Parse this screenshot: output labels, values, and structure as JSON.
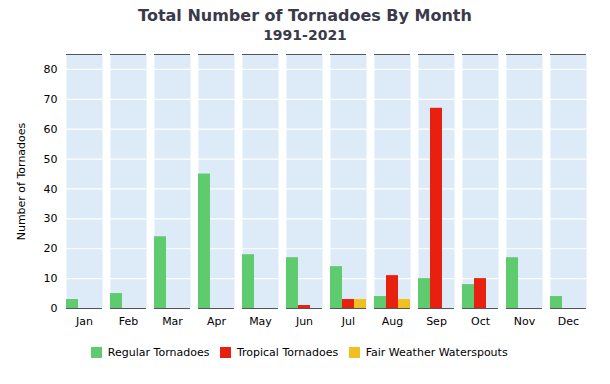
{
  "chart_data": {
    "type": "bar",
    "title": "Total Number of Tornadoes By Month",
    "subtitle": "1991-2021",
    "categories": [
      "Jan",
      "Feb",
      "Mar",
      "Apr",
      "May",
      "Jun",
      "Jul",
      "Aug",
      "Sep",
      "Oct",
      "Nov",
      "Dec"
    ],
    "series": [
      {
        "name": "Regular Tornadoes",
        "color": "#5ecb6e",
        "values": [
          3,
          5,
          24,
          45,
          18,
          17,
          14,
          4,
          10,
          8,
          17,
          4
        ]
      },
      {
        "name": "Tropical Tornadoes",
        "color": "#e82010",
        "values": [
          0,
          0,
          0,
          0,
          0,
          1,
          3,
          11,
          67,
          10,
          0,
          0
        ]
      },
      {
        "name": "Fair Weather Waterspouts",
        "color": "#f0c020",
        "values": [
          0,
          0,
          0,
          0,
          0,
          0,
          3,
          3,
          0,
          0,
          0,
          0
        ]
      }
    ],
    "ylabel": "Number of Tornadoes",
    "ylim": [
      0,
      85
    ],
    "yticks": [
      0,
      10,
      20,
      30,
      40,
      50,
      60,
      70,
      80
    ],
    "grid": true,
    "legend": "bottom"
  }
}
